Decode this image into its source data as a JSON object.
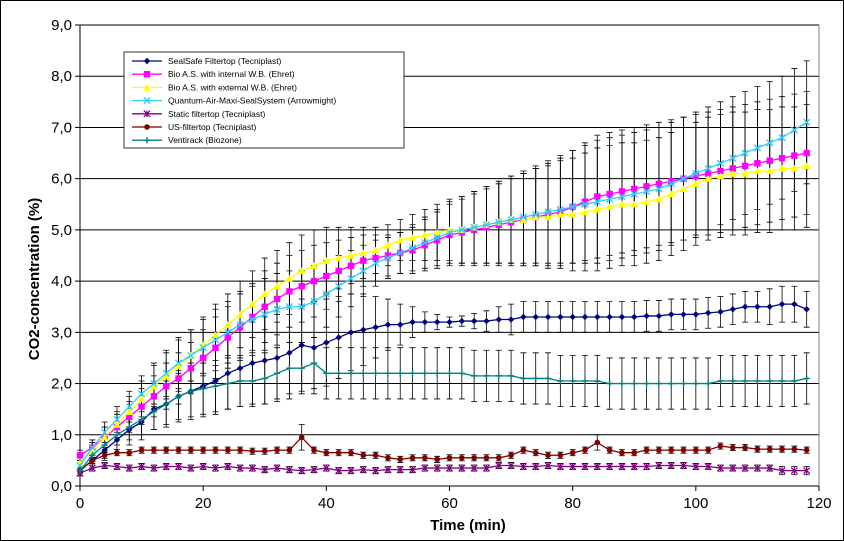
{
  "chart_data": {
    "type": "line",
    "xlabel": "Time (min)",
    "ylabel": "CO2-concentration (%)",
    "xlim": [
      0,
      120
    ],
    "ylim": [
      0,
      9
    ],
    "x_ticks": [
      "0",
      "20",
      "40",
      "60",
      "80",
      "100",
      "120"
    ],
    "y_ticks": [
      "0,0",
      "1,0",
      "2,0",
      "3,0",
      "4,0",
      "5,0",
      "6,0",
      "7,0",
      "8,0",
      "9,0"
    ],
    "grid": "horizontal",
    "legend_position": "top-left",
    "x": [
      0,
      2,
      4,
      6,
      8,
      10,
      12,
      14,
      16,
      18,
      20,
      22,
      24,
      26,
      28,
      30,
      32,
      34,
      36,
      38,
      40,
      42,
      44,
      46,
      48,
      50,
      52,
      54,
      56,
      58,
      60,
      62,
      64,
      66,
      68,
      70,
      72,
      74,
      76,
      78,
      80,
      82,
      84,
      86,
      88,
      90,
      92,
      94,
      96,
      98,
      100,
      102,
      104,
      106,
      108,
      110,
      112,
      114,
      116,
      118
    ],
    "series": [
      {
        "name": "SealSafe Filtertop (Tecniplast)",
        "color": "#000080",
        "marker": "diamond",
        "values": [
          0.3,
          0.5,
          0.7,
          0.9,
          1.1,
          1.25,
          1.5,
          1.6,
          1.75,
          1.85,
          1.95,
          2.05,
          2.2,
          2.3,
          2.4,
          2.45,
          2.5,
          2.6,
          2.75,
          2.7,
          2.8,
          2.9,
          3.0,
          3.05,
          3.1,
          3.15,
          3.15,
          3.2,
          3.2,
          3.2,
          3.2,
          3.22,
          3.22,
          3.22,
          3.25,
          3.25,
          3.3,
          3.3,
          3.3,
          3.3,
          3.3,
          3.3,
          3.3,
          3.3,
          3.3,
          3.3,
          3.32,
          3.32,
          3.35,
          3.35,
          3.35,
          3.38,
          3.4,
          3.45,
          3.5,
          3.5,
          3.5,
          3.55,
          3.55,
          3.45
        ],
        "error": [
          0.1,
          0.15,
          0.2,
          0.25,
          0.3,
          0.35,
          0.4,
          0.45,
          0.5,
          0.55,
          0.6,
          0.65,
          0.7,
          0.75,
          0.8,
          0.85,
          0.85,
          0.9,
          0.9,
          0.9,
          0.85,
          0.8,
          0.75,
          0.7,
          0.6,
          0.5,
          0.4,
          0.3,
          0.2,
          0.15,
          0.1,
          0.1,
          0.15,
          0.2,
          0.25,
          0.3,
          0.3,
          0.3,
          0.3,
          0.3,
          0.3,
          0.3,
          0.3,
          0.3,
          0.3,
          0.3,
          0.3,
          0.3,
          0.3,
          0.3,
          0.3,
          0.3,
          0.3,
          0.3,
          0.3,
          0.3,
          0.35,
          0.35,
          0.35,
          0.35
        ]
      },
      {
        "name": "Bio A.S. with internal W.B. (Ehret)",
        "color": "#FF00FF",
        "marker": "square",
        "values": [
          0.6,
          0.75,
          0.95,
          1.15,
          1.35,
          1.55,
          1.75,
          1.95,
          2.1,
          2.3,
          2.5,
          2.7,
          2.9,
          3.1,
          3.3,
          3.5,
          3.65,
          3.8,
          3.9,
          4.0,
          4.1,
          4.2,
          4.3,
          4.4,
          4.45,
          4.5,
          4.55,
          4.6,
          4.7,
          4.8,
          4.9,
          4.95,
          5.0,
          5.05,
          5.1,
          5.15,
          5.2,
          5.25,
          5.3,
          5.35,
          5.45,
          5.55,
          5.65,
          5.7,
          5.75,
          5.8,
          5.85,
          5.9,
          5.95,
          6.0,
          6.05,
          6.1,
          6.15,
          6.2,
          6.25,
          6.3,
          6.35,
          6.4,
          6.45,
          6.5
        ],
        "error": [
          0.1,
          0.15,
          0.2,
          0.25,
          0.3,
          0.35,
          0.4,
          0.45,
          0.5,
          0.5,
          0.55,
          0.6,
          0.6,
          0.65,
          0.65,
          0.7,
          0.7,
          0.7,
          0.7,
          0.7,
          0.65,
          0.6,
          0.55,
          0.5,
          0.45,
          0.4,
          0.4,
          0.45,
          0.5,
          0.55,
          0.6,
          0.65,
          0.7,
          0.75,
          0.8,
          0.85,
          0.9,
          0.95,
          1.0,
          1.05,
          1.1,
          1.15,
          1.2,
          1.2,
          1.2,
          1.2,
          1.2,
          1.2,
          1.2,
          1.2,
          1.2,
          1.2,
          1.2,
          1.2,
          1.2,
          1.2,
          1.2,
          1.2,
          1.2,
          1.2
        ]
      },
      {
        "name": "Bio A.S. with external W.B. (Ehret)",
        "color": "#FFFF00",
        "marker": "triangle",
        "values": [
          0.45,
          0.7,
          0.95,
          1.2,
          1.45,
          1.7,
          1.95,
          2.15,
          2.35,
          2.55,
          2.75,
          2.95,
          3.15,
          3.35,
          3.55,
          3.75,
          3.9,
          4.05,
          4.2,
          4.3,
          4.4,
          4.45,
          4.5,
          4.55,
          4.6,
          4.7,
          4.8,
          4.85,
          4.9,
          4.95,
          5.0,
          5.0,
          5.05,
          5.1,
          5.15,
          5.2,
          5.2,
          5.25,
          5.25,
          5.3,
          5.3,
          5.35,
          5.4,
          5.45,
          5.5,
          5.5,
          5.55,
          5.6,
          5.7,
          5.8,
          5.9,
          6.0,
          6.05,
          6.1,
          6.1,
          6.15,
          6.15,
          6.2,
          6.2,
          6.25
        ],
        "error": [
          0.1,
          0.15,
          0.2,
          0.25,
          0.3,
          0.35,
          0.4,
          0.45,
          0.5,
          0.5,
          0.55,
          0.6,
          0.6,
          0.65,
          0.65,
          0.7,
          0.7,
          0.7,
          0.7,
          0.7,
          0.65,
          0.6,
          0.55,
          0.5,
          0.45,
          0.4,
          0.4,
          0.45,
          0.5,
          0.55,
          0.6,
          0.65,
          0.7,
          0.75,
          0.8,
          0.85,
          0.9,
          0.95,
          1.0,
          1.05,
          1.1,
          1.15,
          1.2,
          1.2,
          1.2,
          1.2,
          1.2,
          1.2,
          1.2,
          1.2,
          1.2,
          1.2,
          1.2,
          1.2,
          1.2,
          1.2,
          1.2,
          1.2,
          1.2,
          1.2
        ]
      },
      {
        "name": "Quantum-Air-Maxi-SealSystem (Arrowmight)",
        "color": "#33CCFF",
        "marker": "x",
        "values": [
          0.4,
          0.75,
          1.05,
          1.3,
          1.55,
          1.8,
          2.0,
          2.2,
          2.4,
          2.55,
          2.7,
          2.85,
          3.0,
          3.15,
          3.25,
          3.35,
          3.45,
          3.5,
          3.5,
          3.6,
          3.75,
          3.9,
          4.05,
          4.2,
          4.35,
          4.45,
          4.55,
          4.65,
          4.75,
          4.85,
          4.95,
          5.0,
          5.05,
          5.1,
          5.15,
          5.2,
          5.25,
          5.3,
          5.35,
          5.4,
          5.45,
          5.5,
          5.55,
          5.6,
          5.65,
          5.7,
          5.75,
          5.8,
          5.9,
          6.0,
          6.1,
          6.2,
          6.3,
          6.4,
          6.5,
          6.6,
          6.7,
          6.8,
          6.95,
          7.1
        ],
        "error": [
          0.1,
          0.15,
          0.2,
          0.25,
          0.3,
          0.35,
          0.4,
          0.45,
          0.5,
          0.5,
          0.55,
          0.6,
          0.6,
          0.65,
          0.65,
          0.7,
          0.7,
          0.7,
          0.7,
          0.7,
          0.65,
          0.6,
          0.55,
          0.5,
          0.45,
          0.4,
          0.4,
          0.45,
          0.5,
          0.55,
          0.6,
          0.65,
          0.7,
          0.75,
          0.8,
          0.85,
          0.9,
          0.95,
          1.0,
          1.05,
          1.1,
          1.15,
          1.2,
          1.2,
          1.2,
          1.2,
          1.2,
          1.2,
          1.2,
          1.2,
          1.2,
          1.2,
          1.2,
          1.2,
          1.2,
          1.2,
          1.2,
          1.2,
          1.2,
          1.2
        ]
      },
      {
        "name": "Static filtertop (Tecniplast)",
        "color": "#800080",
        "marker": "star",
        "values": [
          0.25,
          0.35,
          0.4,
          0.38,
          0.35,
          0.38,
          0.35,
          0.38,
          0.38,
          0.35,
          0.38,
          0.35,
          0.38,
          0.35,
          0.35,
          0.32,
          0.35,
          0.32,
          0.3,
          0.32,
          0.35,
          0.3,
          0.3,
          0.32,
          0.3,
          0.32,
          0.32,
          0.32,
          0.35,
          0.35,
          0.35,
          0.35,
          0.35,
          0.35,
          0.4,
          0.4,
          0.38,
          0.38,
          0.4,
          0.38,
          0.38,
          0.38,
          0.38,
          0.38,
          0.38,
          0.38,
          0.38,
          0.4,
          0.4,
          0.4,
          0.38,
          0.38,
          0.35,
          0.35,
          0.35,
          0.35,
          0.35,
          0.3,
          0.3,
          0.3
        ],
        "error": [
          0.05,
          0.06,
          0.06,
          0.06,
          0.06,
          0.06,
          0.06,
          0.06,
          0.06,
          0.06,
          0.06,
          0.06,
          0.06,
          0.06,
          0.06,
          0.06,
          0.06,
          0.06,
          0.06,
          0.06,
          0.06,
          0.06,
          0.06,
          0.06,
          0.06,
          0.06,
          0.06,
          0.06,
          0.06,
          0.06,
          0.06,
          0.06,
          0.06,
          0.06,
          0.06,
          0.06,
          0.06,
          0.06,
          0.06,
          0.06,
          0.06,
          0.06,
          0.06,
          0.06,
          0.06,
          0.06,
          0.06,
          0.06,
          0.06,
          0.06,
          0.06,
          0.06,
          0.06,
          0.06,
          0.06,
          0.06,
          0.06,
          0.08,
          0.08,
          0.08
        ]
      },
      {
        "name": "US-filtertop (Tecniplast)",
        "color": "#800000",
        "marker": "circle",
        "values": [
          0.3,
          0.5,
          0.6,
          0.65,
          0.65,
          0.7,
          0.7,
          0.7,
          0.7,
          0.7,
          0.7,
          0.7,
          0.7,
          0.7,
          0.68,
          0.68,
          0.7,
          0.7,
          0.95,
          0.7,
          0.65,
          0.65,
          0.65,
          0.6,
          0.6,
          0.55,
          0.52,
          0.55,
          0.55,
          0.52,
          0.55,
          0.55,
          0.55,
          0.55,
          0.55,
          0.6,
          0.7,
          0.65,
          0.6,
          0.6,
          0.65,
          0.7,
          0.85,
          0.7,
          0.65,
          0.65,
          0.7,
          0.7,
          0.7,
          0.7,
          0.7,
          0.7,
          0.78,
          0.75,
          0.75,
          0.72,
          0.72,
          0.72,
          0.72,
          0.7
        ],
        "error": [
          0.05,
          0.06,
          0.06,
          0.06,
          0.06,
          0.06,
          0.06,
          0.06,
          0.06,
          0.06,
          0.06,
          0.06,
          0.06,
          0.06,
          0.06,
          0.06,
          0.06,
          0.06,
          0.25,
          0.06,
          0.06,
          0.06,
          0.06,
          0.06,
          0.06,
          0.06,
          0.06,
          0.06,
          0.06,
          0.06,
          0.06,
          0.06,
          0.06,
          0.06,
          0.06,
          0.06,
          0.06,
          0.06,
          0.06,
          0.06,
          0.06,
          0.06,
          0.15,
          0.06,
          0.06,
          0.06,
          0.06,
          0.06,
          0.06,
          0.06,
          0.06,
          0.06,
          0.06,
          0.06,
          0.06,
          0.06,
          0.06,
          0.06,
          0.06,
          0.06
        ]
      },
      {
        "name": "Ventirack (Biozone)",
        "color": "#008080",
        "marker": "plus",
        "values": [
          0.3,
          0.6,
          0.8,
          1.0,
          1.15,
          1.3,
          1.45,
          1.6,
          1.75,
          1.85,
          1.9,
          1.95,
          2.0,
          2.05,
          2.05,
          2.1,
          2.2,
          2.3,
          2.3,
          2.4,
          2.2,
          2.2,
          2.2,
          2.2,
          2.2,
          2.2,
          2.2,
          2.2,
          2.2,
          2.2,
          2.2,
          2.2,
          2.15,
          2.15,
          2.15,
          2.15,
          2.1,
          2.1,
          2.1,
          2.05,
          2.05,
          2.05,
          2.05,
          2.0,
          2.0,
          2.0,
          2.0,
          2.0,
          2.0,
          2.0,
          2.0,
          2.0,
          2.05,
          2.05,
          2.05,
          2.05,
          2.05,
          2.05,
          2.05,
          2.1
        ],
        "error": [
          0.1,
          0.12,
          0.15,
          0.2,
          0.25,
          0.3,
          0.35,
          0.4,
          0.45,
          0.5,
          0.5,
          0.5,
          0.5,
          0.5,
          0.5,
          0.5,
          0.5,
          0.5,
          0.5,
          0.5,
          0.5,
          0.5,
          0.5,
          0.5,
          0.5,
          0.5,
          0.5,
          0.5,
          0.5,
          0.5,
          0.5,
          0.5,
          0.5,
          0.5,
          0.5,
          0.5,
          0.5,
          0.5,
          0.5,
          0.5,
          0.5,
          0.5,
          0.5,
          0.5,
          0.5,
          0.5,
          0.5,
          0.5,
          0.5,
          0.5,
          0.5,
          0.5,
          0.5,
          0.5,
          0.5,
          0.5,
          0.5,
          0.5,
          0.5,
          0.5
        ]
      }
    ]
  }
}
